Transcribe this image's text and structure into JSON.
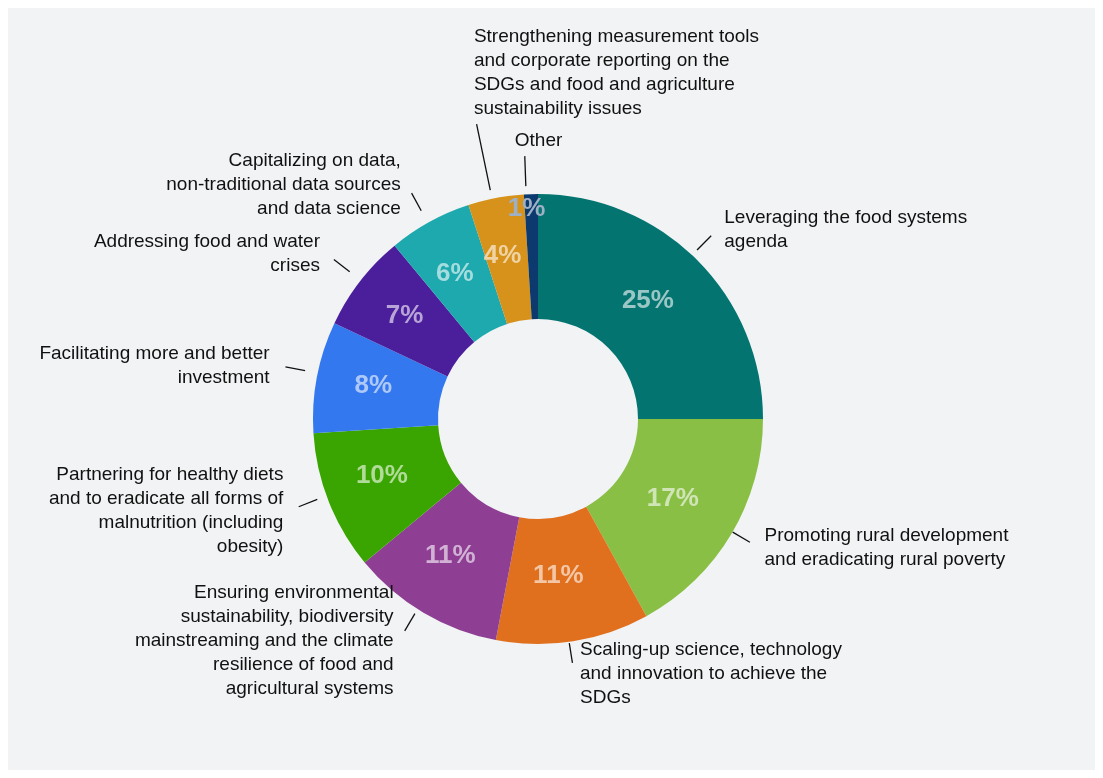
{
  "chart_data": {
    "type": "donut",
    "categories": [
      "Leveraging the food systems agenda",
      "Promoting rural development and eradicating rural poverty",
      "Scaling-up science, technology and innovation to achieve the SDGs",
      "Ensuring environmental sustainability, biodiversity mainstreaming and the climate resilience of food and agricultural systems",
      "Partnering for healthy diets and to eradicate all forms of malnutrition (including obesity)",
      "Facilitating more and better investment",
      "Addressing food and water crises",
      "Capitalizing on data, non-traditional data sources and data science",
      "Strengthening measurement tools and corporate reporting on the SDGs and food and agriculture sustainability issues",
      "Other"
    ],
    "values": [
      25,
      17,
      11,
      11,
      10,
      8,
      7,
      6,
      4,
      1
    ],
    "colors": [
      "#03746f",
      "#8abf45",
      "#e0701e",
      "#8e3f93",
      "#3aa500",
      "#3478ef",
      "#4b1f9b",
      "#1ea9ae",
      "#d6921a",
      "#0d3a6e"
    ],
    "value_labels": [
      "25%",
      "17%",
      "11%",
      "11%",
      "10%",
      "8%",
      "7%",
      "6%",
      "4%",
      "1%"
    ]
  }
}
